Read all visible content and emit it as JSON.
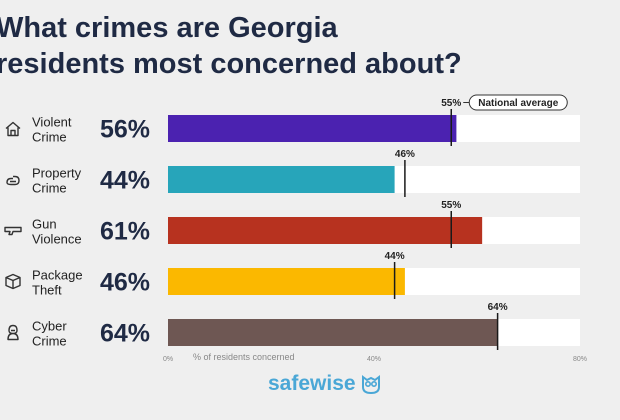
{
  "title_line1": "What crimes are Georgia",
  "title_line2": "residents most concerned about?",
  "national_average_label": "National average",
  "brand": "safewise",
  "colors": {
    "title": "#1f2a44",
    "track": "#ffffff",
    "marker": "#1a1a1a",
    "brand": "#4aa7d6"
  },
  "chart_data": {
    "type": "bar",
    "orientation": "horizontal",
    "categories": [
      {
        "line1": "Violent",
        "line2": "Crime",
        "icon": "house-icon"
      },
      {
        "line1": "Property",
        "line2": "Crime",
        "icon": "link-icon"
      },
      {
        "line1": "Gun",
        "line2": "Violence",
        "icon": "gun-icon"
      },
      {
        "line1": "Package",
        "line2": "Theft",
        "icon": "package-icon"
      },
      {
        "line1": "Cyber",
        "line2": "Crime",
        "icon": "hacker-icon"
      }
    ],
    "values": [
      56,
      44,
      61,
      46,
      64
    ],
    "value_labels": [
      "56%",
      "44%",
      "61%",
      "46%",
      "64%"
    ],
    "national_average": [
      55,
      46,
      55,
      44,
      64
    ],
    "national_average_labels": [
      "55%",
      "46%",
      "55%",
      "44%",
      "64%"
    ],
    "bar_colors": [
      "#4b22b0",
      "#27a5ba",
      "#b7321f",
      "#fbb800",
      "#6e5753"
    ],
    "xlim": [
      0,
      80
    ],
    "xticks": [
      0,
      40,
      80
    ],
    "xtick_labels": [
      "0%",
      "40%",
      "80%"
    ],
    "xlabel": "% of residents concerned"
  }
}
